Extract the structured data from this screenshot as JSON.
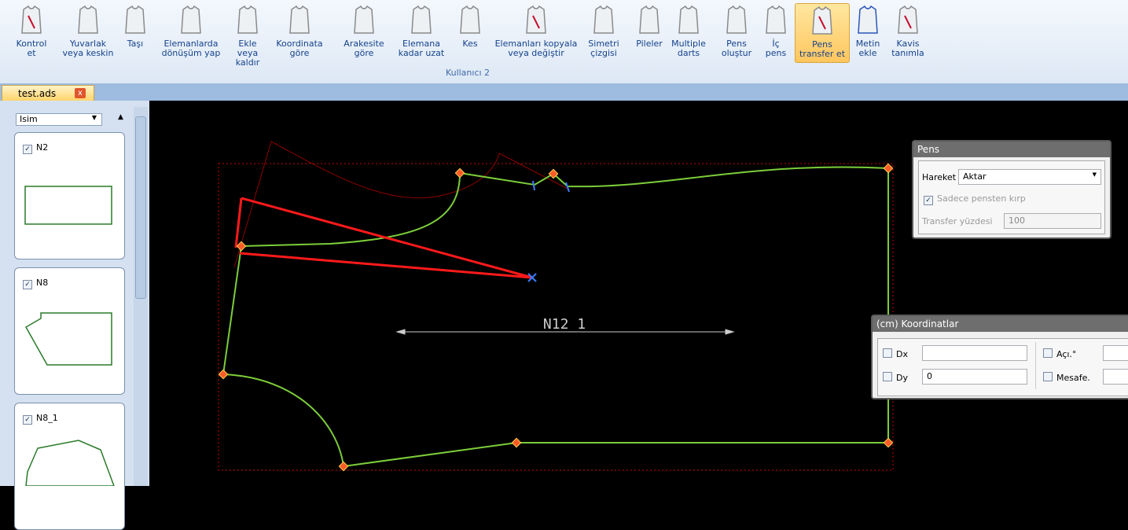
{
  "ribbon": {
    "buttons": [
      [
        "Kontrol",
        "et"
      ],
      [
        "Yuvarlak",
        "veya keskin"
      ],
      [
        "Taşı"
      ],
      [
        "Elemanlarda",
        "dönüşüm yap"
      ],
      [
        "Ekle veya",
        "kaldır"
      ],
      [
        "Koordinata",
        "göre"
      ],
      [
        "Arakesite",
        "göre"
      ],
      [
        "Elemana",
        "kadar uzat"
      ],
      [
        "Kes"
      ],
      [
        "Elemanları kopyala",
        "veya değiştir"
      ],
      [
        "Simetri",
        "çizgisi"
      ],
      [
        "Pileler"
      ],
      [
        "Multiple",
        "darts"
      ],
      [
        "Pens",
        "oluştur"
      ],
      [
        "İç",
        "pens"
      ],
      [
        "Pens",
        "transfer et"
      ],
      [
        "Metin",
        "ekle"
      ],
      [
        "Kavis",
        "tanımla"
      ]
    ],
    "group": "Kullanıcı 2"
  },
  "tab": "test.ads",
  "panel": {
    "sort": "Isim",
    "items": [
      "N2",
      "N8",
      "N8_1"
    ]
  },
  "canvas": {
    "label": "N12_1"
  },
  "pens_dialog": {
    "title": "Pens",
    "hareket_label": "Hareket",
    "hareket_value": "Aktar",
    "checkbox": "Sadece pensten kırp",
    "transfer_label": "Transfer yüzdesi",
    "transfer_value": "100"
  },
  "coord_dialog": {
    "title": "(cm) Koordinatlar",
    "dx": "Dx",
    "dy": "Dy",
    "dy_value": "0",
    "angle": "Açı.°",
    "distance": "Mesafe."
  }
}
